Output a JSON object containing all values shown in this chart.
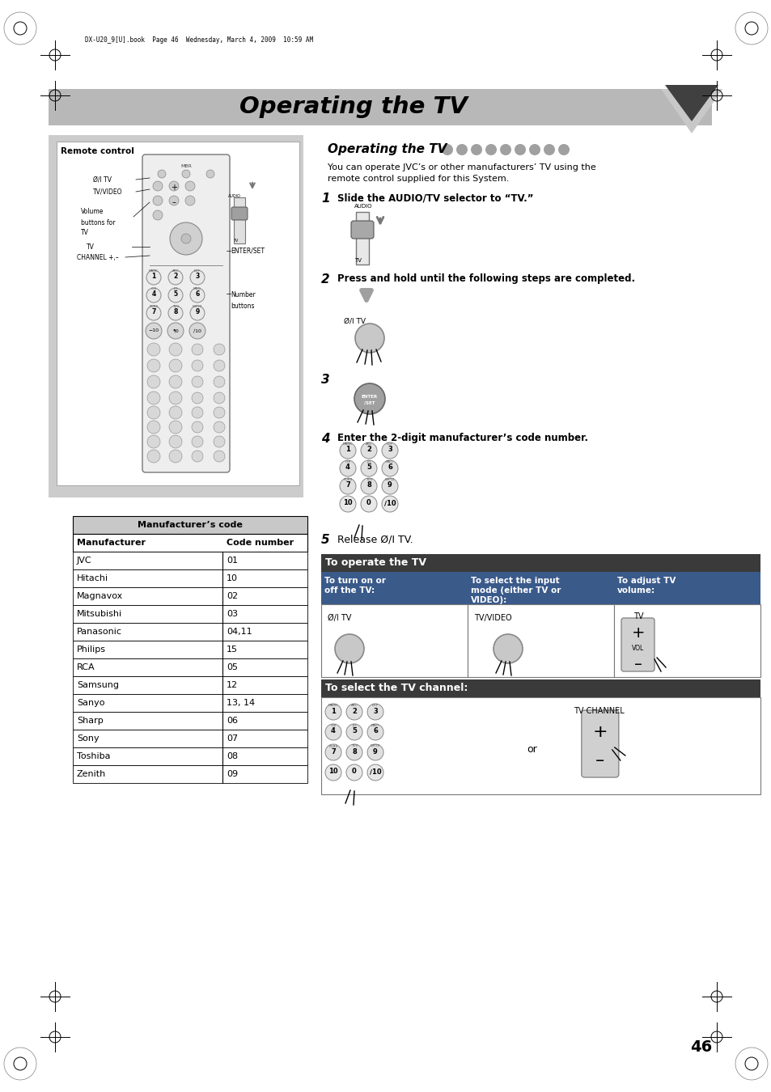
{
  "page_bg": "#ffffff",
  "header_bg": "#b8b8b8",
  "header_text": "Operating the TV",
  "triangle_dark": "#404040",
  "triangle_light": "#c8c8c8",
  "print_marks_text": "DX-U20_9[U].book  Page 46  Wednesday, March 4, 2009  10:59 AM",
  "section_title": "Operating the TV",
  "section_dots_color": "#a0a0a0",
  "intro_text": "You can operate JVC’s or other manufacturers’ TV using the\nremote control supplied for this System.",
  "step1_text": "Slide the AUDIO/TV selector to “TV.”",
  "step2_text": "Press and hold until the following steps are completed.",
  "step4_text": "Enter the 2-digit manufacturer’s code number.",
  "step5_text": "Release Ø/I TV.",
  "operate_title": "To operate the TV",
  "col1_header": "To turn on or\noff the TV:",
  "col2_header": "To select the input\nmode (either TV or\nVIDEO):",
  "col3_header": "To adjust TV\nvolume:",
  "channel_label": "To select the TV channel:",
  "or_text": "or",
  "tv_channel_text": "TV CHANNEL",
  "left_panel_label": "Remote control",
  "table_title": "Manufacturer’s code",
  "table_col1": "Manufacturer",
  "table_col2": "Code number",
  "table_data": [
    [
      "JVC",
      "01"
    ],
    [
      "Hitachi",
      "10"
    ],
    [
      "Magnavox",
      "02"
    ],
    [
      "Mitsubishi",
      "03"
    ],
    [
      "Panasonic",
      "04,11"
    ],
    [
      "Philips",
      "15"
    ],
    [
      "RCA",
      "05"
    ],
    [
      "Samsung",
      "12"
    ],
    [
      "Sanyo",
      "13, 14"
    ],
    [
      "Sharp",
      "06"
    ],
    [
      "Sony",
      "07"
    ],
    [
      "Toshiba",
      "08"
    ],
    [
      "Zenith",
      "09"
    ]
  ],
  "page_number": "46",
  "left_panel_bg": "#cccccc",
  "operate_header_bg": "#3a3a3a",
  "operate_col_header_bg": "#3a5a8a",
  "operate_col_header_text": "#ffffff"
}
